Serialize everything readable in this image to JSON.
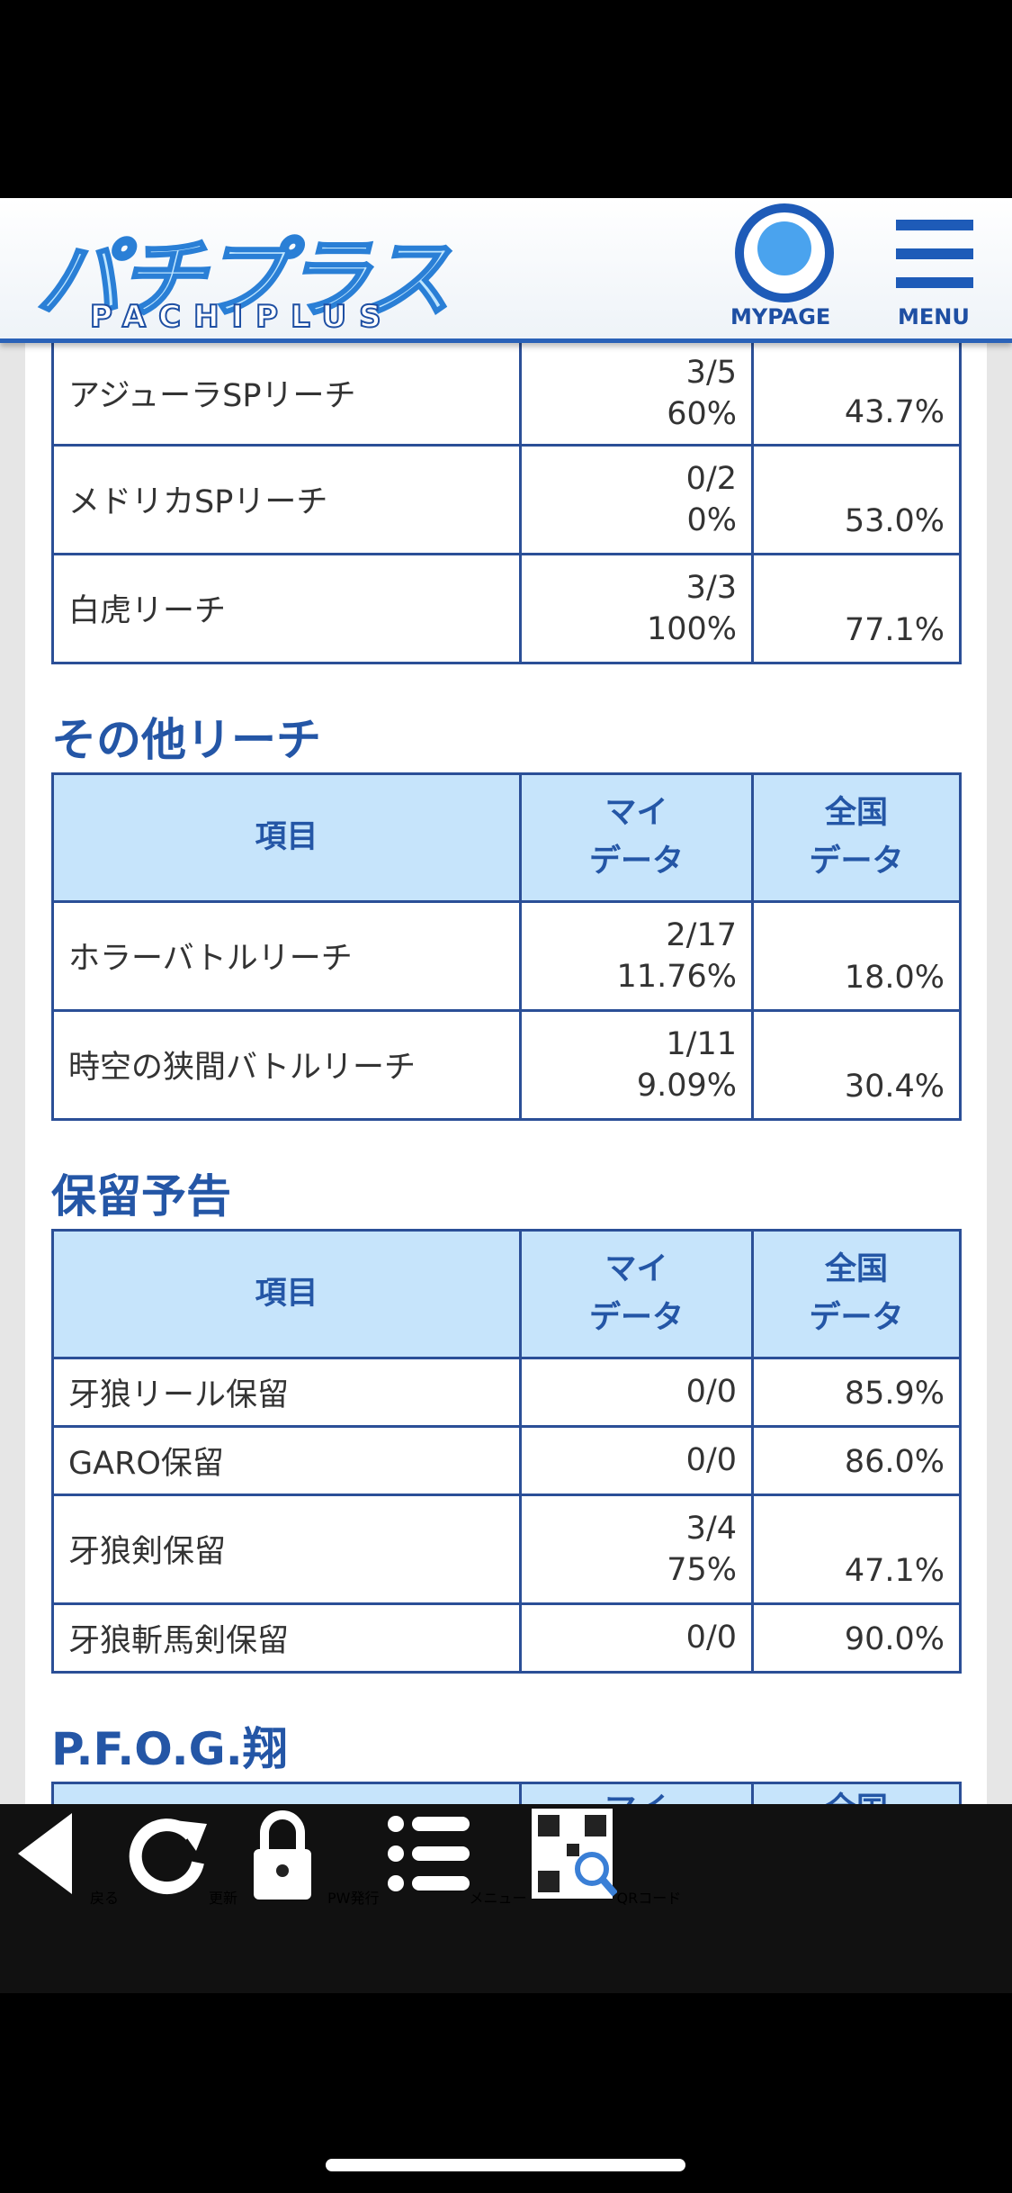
{
  "header": {
    "logo": "パチプラス",
    "logo_sub": "PACHIPLUS",
    "mypage": "MYPAGE",
    "menu": "MENU"
  },
  "tables": [
    {
      "rows": [
        {
          "name": "アジューラSPリーチ",
          "my": [
            "3/5",
            "60%"
          ],
          "national": "43.7%"
        },
        {
          "name": "メドリカSPリーチ",
          "my": [
            "0/2",
            "0%"
          ],
          "national": "53.0%"
        },
        {
          "name": "白虎リーチ",
          "my": [
            "3/3",
            "100%"
          ],
          "national": "77.1%"
        }
      ]
    },
    {
      "heading": "その他リーチ",
      "columns": {
        "item": "項目",
        "my": [
          "マイ",
          "データ"
        ],
        "national": [
          "全国",
          "データ"
        ]
      },
      "rows": [
        {
          "name": "ホラーバトルリーチ",
          "my": [
            "2/17",
            "11.76%"
          ],
          "national": "18.0%"
        },
        {
          "name": "時空の狭間バトルリーチ",
          "my": [
            "1/11",
            "9.09%"
          ],
          "national": "30.4%"
        }
      ]
    },
    {
      "heading": "保留予告",
      "columns": {
        "item": "項目",
        "my": [
          "マイ",
          "データ"
        ],
        "national": [
          "全国",
          "データ"
        ]
      },
      "rows": [
        {
          "name": "牙狼リール保留",
          "my": [
            "0/0"
          ],
          "national": "85.9%"
        },
        {
          "name": "GARO保留",
          "my": [
            "0/0"
          ],
          "national": "86.0%"
        },
        {
          "name": "牙狼剣保留",
          "my": [
            "3/4",
            "75%"
          ],
          "national": "47.1%"
        },
        {
          "name": "牙狼斬馬剣保留",
          "my": [
            "0/0"
          ],
          "national": "90.0%"
        }
      ]
    },
    {
      "heading": "P.F.O.G.翔",
      "columns": {
        "my": [
          "マイ"
        ],
        "national": [
          "全国"
        ]
      }
    }
  ],
  "toolbar": [
    "戻る",
    "更新",
    "PW発行",
    "メニュー",
    "QRコード"
  ]
}
